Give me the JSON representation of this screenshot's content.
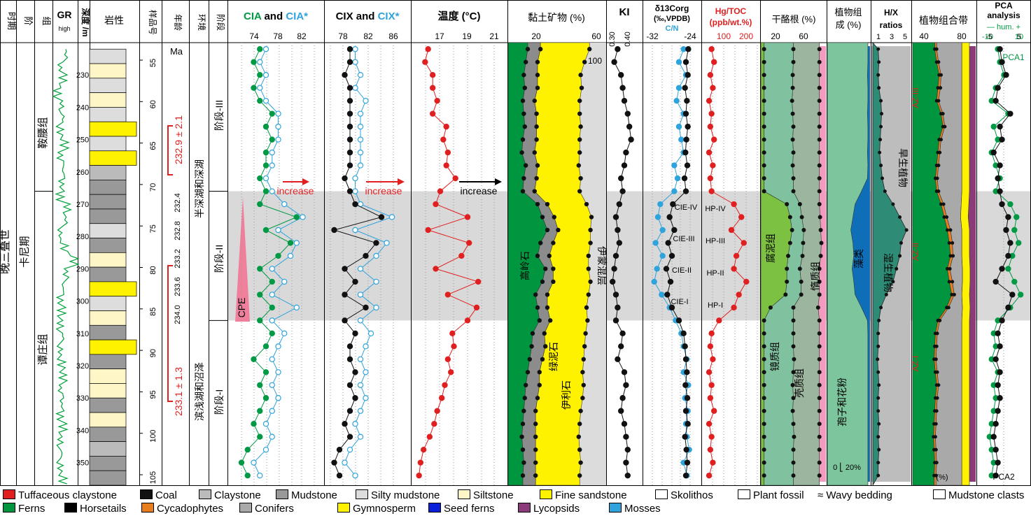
{
  "headers": {
    "period": "时期",
    "stage": "阶",
    "formation": "组",
    "gr": "GR",
    "gr_high": "high",
    "depth": "深度 /m",
    "lithology": "岩性",
    "sample": "样品号",
    "age": "年龄",
    "env": "环境",
    "phase": "阶段",
    "cia_a": "CIA",
    "cia_and": " and ",
    "cia_b": "CIA*",
    "cix_a": "CIX",
    "cix_and": " and ",
    "cix_b": "CIX*",
    "temp": "温度 (°C)",
    "clay": "黏土矿物 (%)",
    "ki": "KI",
    "carbon_1": "δ13Corg",
    "carbon_2": "(‰,VPDB)",
    "carbon_3": "C/N",
    "hg_1": "Hg/TOC",
    "hg_2": "(ppb/wt.%)",
    "maceral": "干酪根 (%)",
    "plant": "植物组",
    "plant2": "成 (%)",
    "hx1": "H/X",
    "hx2": "ratios",
    "assemb": "植物组合带",
    "pca1": "PCA",
    "pca2": "analysis",
    "pca3": "— hum. +"
  },
  "labels": {
    "period": "晚三叠世",
    "stage": "卡尼期",
    "formation_upper": "鞍腰组",
    "formation_lower": "谭庄组",
    "ma": "Ma",
    "age_upper": "232.9 ± 2.1",
    "age_lower": "233.1 ± 1.3",
    "ages_mid": [
      "232.4",
      "232.8",
      "233.2",
      "233.6",
      "234.0"
    ],
    "env_upper": "半深湖和深湖",
    "env_lower": "滨浅湖和沼泽",
    "phase_iii": "阶段-III",
    "phase_ii": "阶段-II",
    "phase_i": "阶段-I",
    "cpe": "CPE",
    "increase": "increase",
    "clay_kaol": "高岭石",
    "clay_chlor": "绿泥石",
    "clay_illite": "伊利石",
    "clay_is": "伊蒙混层",
    "clay_100": "100",
    "cie": [
      "CIE-IV",
      "CIE-III",
      "CIE-II",
      "CIE-I"
    ],
    "hp": [
      "HP-IV",
      "HP-III",
      "HP-II",
      "HP-I"
    ],
    "mac_sap": "腐泥组",
    "mac_vit": "镜质组",
    "mac_lip": "壳质组",
    "mac_iner": "惰质组",
    "pl_spore": "孢子和花粉",
    "pl_algae": "藻类",
    "pl_scale": "0 ⎣ 20%",
    "hx_xero": "旱生植物",
    "hx_hygro": "湿生植物",
    "az3": "AZ-III",
    "az2": "AZ-II",
    "az1": "AZ-I",
    "pca1_label": "PCA1",
    "pca2_label": "PCA2",
    "assemb_unit": "(%)"
  },
  "axes": {
    "depth_ticks": [
      230,
      240,
      250,
      260,
      270,
      280,
      290,
      300,
      310,
      320,
      330,
      340,
      350
    ],
    "sample_ticks": [
      55,
      60,
      65,
      70,
      75,
      80,
      85,
      90,
      95,
      100,
      105
    ],
    "cia_ticks": [
      "74",
      "78",
      "82"
    ],
    "cix_ticks": [
      "78",
      "82",
      "86"
    ],
    "temp_ticks": [
      "17",
      "19",
      "21"
    ],
    "clay_ticks": [
      "20",
      "60"
    ],
    "ki_ticks": [
      "0.30",
      "0.40"
    ],
    "carbon_ticks": [
      "-32",
      "-24"
    ],
    "hg_ticks": [
      "100",
      "200"
    ],
    "mac_ticks": [
      "20",
      "60"
    ],
    "hx_ticks": [
      "1",
      "3",
      "5"
    ],
    "assemb_ticks": [
      "40",
      "80"
    ],
    "pca_top_ticks": [
      "-10",
      "10"
    ],
    "pca_bot_ticks": [
      "-5",
      "5"
    ]
  },
  "colors": {
    "green": "#009944",
    "blue": "#2fa3dc",
    "red": "#e02020",
    "black": "#000",
    "cpe": "#f07f9c",
    "shade": "#d9d9d9",
    "kaol": "#00963f",
    "chlor": "#8c8c8c",
    "illite": "#fff200",
    "is": "#dcdcdc",
    "sap": "#7dc142",
    "vit": "#80c2a0",
    "lip": "#9cb59e",
    "iner": "#f39bbe",
    "spore": "#7dc59d",
    "algae": "#0e6fb8",
    "hx_dry": "#bdbdbd",
    "hx_wet": "#2e8b75",
    "ferns": "#00963f",
    "cycad": "#e87e1e",
    "conifer": "#a9a9a9",
    "gymno": "#fff200",
    "lyco": "#8b3a7a",
    "gr": "#00a03a"
  },
  "chart_data": {
    "type": "line",
    "depth_m": [
      222,
      226,
      230,
      234,
      238,
      242,
      246,
      250,
      254,
      258,
      262,
      266,
      270,
      274,
      278,
      282,
      286,
      290,
      294,
      298,
      302,
      306,
      310,
      314,
      318,
      322,
      326,
      330,
      334,
      338,
      342,
      346,
      350,
      354
    ],
    "cia": [
      75,
      74,
      75,
      74,
      75,
      77,
      76,
      77,
      76,
      76,
      75,
      76,
      75,
      81,
      76,
      80,
      78,
      75,
      77,
      75,
      77,
      75,
      77,
      76,
      74,
      76,
      75,
      76,
      75,
      74,
      75,
      73,
      72,
      73
    ],
    "cia_star": [
      76,
      75,
      76,
      75,
      76,
      78,
      78,
      78,
      77,
      77,
      76,
      77,
      79,
      82,
      78,
      81,
      80,
      77,
      79,
      77,
      81,
      77,
      79,
      78,
      77,
      78,
      77,
      78,
      77,
      76,
      77,
      76,
      74,
      75
    ],
    "cix": [
      78,
      78,
      77,
      78,
      78,
      78,
      78,
      78,
      78,
      78,
      77,
      78,
      79,
      84,
      75,
      83,
      81,
      77,
      79,
      77,
      81,
      77,
      79,
      78,
      78,
      79,
      78,
      79,
      78,
      77,
      78,
      76,
      75,
      76
    ],
    "cix_star": [
      79,
      79,
      80,
      79,
      81,
      80,
      80,
      80,
      80,
      80,
      79,
      79,
      80,
      86,
      79,
      85,
      83,
      80,
      83,
      80,
      83,
      80,
      82,
      81,
      80,
      81,
      80,
      81,
      80,
      79,
      80,
      78,
      77,
      79
    ],
    "temp_c": [
      17.0,
      16.8,
      17.3,
      17.3,
      17.6,
      17.3,
      18.2,
      18.0,
      18.3,
      18.2,
      18.8,
      17.8,
      17.5,
      19.6,
      17.0,
      19.7,
      19.2,
      17.5,
      20.3,
      18.3,
      20.2,
      19.6,
      18.6,
      18.7,
      18.3,
      18.5,
      18.1,
      17.9,
      17.6,
      17.4,
      17.1,
      16.7,
      16.5,
      16.4
    ],
    "ki": [
      0.31,
      0.29,
      0.33,
      0.34,
      0.35,
      0.37,
      0.38,
      0.39,
      0.36,
      0.35,
      0.33,
      0.34,
      0.32,
      0.3,
      0.31,
      0.32,
      0.3,
      0.29,
      0.28,
      0.3,
      0.31,
      0.3,
      0.34,
      0.33,
      0.31,
      0.35,
      0.36,
      0.34,
      0.33,
      0.35,
      0.36,
      0.37,
      0.36,
      0.37
    ],
    "d13c": [
      -24.5,
      -25.0,
      -24.6,
      -25.2,
      -24.8,
      -25.0,
      -24.6,
      -24.9,
      -25.1,
      -24.7,
      -25.3,
      -25.0,
      -27.8,
      -28.5,
      -27.5,
      -28.8,
      -28.0,
      -29.2,
      -28.3,
      -29.0,
      -28.0,
      -26.5,
      -25.5,
      -25.2,
      -25.0,
      -24.8,
      -25.1,
      -24.7,
      -25.0,
      -24.6,
      -25.2,
      -24.9,
      -24.7,
      -25.0
    ],
    "c_n": [
      -25.5,
      -26.5,
      -25.0,
      -26.5,
      -27.0,
      -25.5,
      -26.5,
      -26.0,
      -25.5,
      -27.5,
      -26.8,
      -27.5,
      -30.5,
      -31.0,
      -30.0,
      -31.5,
      -30.0,
      -31.2,
      -31.8,
      -30.2,
      -28.5,
      -27.2,
      -26.0,
      -25.5,
      -24.8,
      -25.5,
      -24.5,
      -25.2,
      -24.6,
      -25.0,
      -24.8,
      -24.3,
      -25.5,
      -24.8
    ],
    "hg_toc": [
      30,
      40,
      25,
      35,
      20,
      30,
      25,
      40,
      20,
      35,
      25,
      30,
      120,
      150,
      110,
      160,
      130,
      120,
      170,
      140,
      120,
      60,
      30,
      25,
      35,
      20,
      30,
      25,
      40,
      20,
      30,
      25,
      35,
      20
    ],
    "clay_kaolinite": [
      20,
      18,
      16,
      17,
      15,
      16,
      17,
      15,
      14,
      18,
      16,
      15,
      30,
      35,
      40,
      33,
      30,
      38,
      35,
      28,
      30,
      32,
      25,
      24,
      22,
      20,
      18,
      17,
      16,
      15,
      14,
      15,
      16,
      15
    ],
    "clay_chlorite": [
      13,
      12,
      14,
      13,
      12,
      13,
      12,
      14,
      13,
      12,
      13,
      12,
      10,
      12,
      11,
      13,
      12,
      8,
      11,
      12,
      10,
      11,
      12,
      14,
      13,
      12,
      14,
      13,
      12,
      13,
      14,
      13,
      12,
      13
    ],
    "clay_illite": [
      50,
      48,
      44,
      45,
      46,
      44,
      45,
      44,
      46,
      42,
      45,
      46,
      40,
      38,
      33,
      38,
      40,
      36,
      38,
      42,
      40,
      38,
      42,
      40,
      42,
      44,
      45,
      46,
      46,
      45,
      44,
      45,
      46,
      45
    ],
    "maceral_sapropelinite": [
      5,
      5,
      5,
      5,
      5,
      5,
      5,
      5,
      5,
      5,
      5,
      5,
      40,
      45,
      48,
      45,
      42,
      40,
      40,
      38,
      15,
      5,
      5,
      5,
      5,
      5,
      5,
      5,
      5,
      5,
      5,
      5,
      5,
      5
    ],
    "maceral_vitrinite": [
      45,
      45,
      44,
      44,
      43,
      44,
      45,
      44,
      45,
      44,
      45,
      45,
      20,
      18,
      18,
      20,
      22,
      20,
      22,
      24,
      35,
      45,
      45,
      45,
      46,
      45,
      44,
      45,
      44,
      45,
      46,
      45,
      45,
      45
    ],
    "maceral_liptinite": [
      40,
      40,
      41,
      41,
      42,
      41,
      40,
      41,
      40,
      41,
      40,
      40,
      30,
      28,
      26,
      28,
      28,
      30,
      28,
      28,
      38,
      40,
      40,
      40,
      39,
      40,
      41,
      40,
      41,
      40,
      39,
      40,
      40,
      40
    ],
    "plant_spore": [
      95,
      95,
      94,
      95,
      95,
      94,
      95,
      95,
      94,
      95,
      94,
      80,
      65,
      60,
      55,
      60,
      62,
      58,
      62,
      65,
      80,
      94,
      95,
      95,
      95,
      95,
      95,
      95,
      95,
      95,
      95,
      95,
      95,
      95
    ],
    "plant_algae": [
      5,
      5,
      6,
      5,
      5,
      6,
      5,
      5,
      6,
      5,
      6,
      20,
      35,
      40,
      45,
      40,
      38,
      42,
      38,
      35,
      20,
      6,
      5,
      5,
      5,
      5,
      5,
      5,
      5,
      5,
      5,
      5,
      5,
      5
    ],
    "hx_ratio": [
      0.8,
      0.9,
      0.8,
      0.9,
      1.2,
      1.3,
      1.2,
      1.1,
      1.0,
      1.2,
      1.4,
      1.8,
      3.0,
      4.0,
      5.0,
      4.2,
      4.0,
      3.5,
      3.0,
      2.0,
      1.2,
      0.9,
      0.8,
      0.8,
      0.7,
      0.8,
      0.9,
      0.8,
      0.8,
      0.9,
      0.8,
      0.9,
      0.8,
      0.8
    ],
    "assemb_ferns": [
      35,
      38,
      42,
      40,
      38,
      45,
      48,
      42,
      40,
      38,
      36,
      38,
      45,
      50,
      55,
      58,
      60,
      55,
      58,
      62,
      54,
      40,
      36,
      35,
      34,
      36,
      38,
      36,
      35,
      34,
      33,
      34,
      35,
      34
    ],
    "assemb_cycad": [
      3,
      3,
      3,
      4,
      3,
      3,
      3,
      3,
      3,
      3,
      3,
      3,
      4,
      4,
      5,
      5,
      4,
      4,
      5,
      4,
      3,
      3,
      3,
      3,
      3,
      3,
      3,
      3,
      3,
      3,
      3,
      3,
      3,
      3
    ],
    "assemb_conifer": [
      40,
      37,
      33,
      34,
      37,
      30,
      27,
      33,
      35,
      37,
      39,
      37,
      28,
      22,
      18,
      15,
      14,
      20,
      16,
      12,
      22,
      35,
      39,
      40,
      41,
      39,
      37,
      39,
      40,
      41,
      42,
      41,
      40,
      41
    ],
    "assemb_gymno": [
      12,
      12,
      12,
      12,
      12,
      12,
      12,
      12,
      12,
      12,
      12,
      12,
      12,
      12,
      12,
      12,
      12,
      12,
      12,
      12,
      12,
      12,
      12,
      12,
      12,
      12,
      12,
      12,
      12,
      12,
      12,
      12,
      12,
      12
    ],
    "pca1": [
      -3,
      -2,
      0,
      -4,
      -6,
      2,
      -5,
      -3,
      -6,
      -4,
      -2,
      -4,
      3,
      6,
      5,
      7,
      4,
      2,
      5,
      8,
      3,
      -3,
      -5,
      -4,
      -6,
      -3,
      -5,
      -4,
      -5,
      -6,
      -7,
      -6,
      -5,
      -6
    ],
    "pca2": [
      -2,
      -1,
      1,
      -3,
      -4,
      3,
      -2,
      -1,
      -5,
      -2,
      -3,
      -2,
      -1,
      2,
      1,
      3,
      2,
      -1,
      -4,
      4,
      2,
      -1,
      -3,
      -2,
      -4,
      -2,
      -3,
      -2,
      -3,
      -4,
      -5,
      -4,
      -3,
      -4
    ],
    "gr_offset": [
      0.3,
      0.1,
      0.2,
      0.0,
      0.15,
      0.2,
      0.1,
      0.25,
      0.1,
      0.2,
      0.15,
      0.1,
      0.35,
      0.3,
      0.1,
      0.25,
      0.6,
      0.3,
      0.2,
      0.1,
      0.15,
      0.1,
      0.2,
      0.1,
      0.15,
      0.2,
      0.1,
      0.15,
      0.1,
      0.2,
      0.1,
      0.15,
      0.1,
      0.2
    ]
  },
  "legend": {
    "row1": [
      {
        "label": "Tuffaceous claystone",
        "color": "#e02020"
      },
      {
        "label": "Coal",
        "color": "#111"
      },
      {
        "label": "Claystone",
        "color": "#bbb"
      },
      {
        "label": "Mudstone",
        "color": "#999"
      },
      {
        "label": "Silty mudstone",
        "color": "#ddd"
      },
      {
        "label": "Siltstone",
        "color": "#fff6c8"
      },
      {
        "label": "Fine sandstone",
        "color": "#fff200"
      },
      {
        "label": "Skolithos",
        "color": "#fff"
      },
      {
        "label": "Plant fossil",
        "color": "#fff"
      },
      {
        "label": "≈ Wavy bedding",
        "color": ""
      },
      {
        "label": "Mudstone clasts",
        "color": "#fff"
      }
    ],
    "row2": [
      {
        "label": "Ferns",
        "color": "#00963f"
      },
      {
        "label": "Horsetails",
        "color": "#000"
      },
      {
        "label": "Cycadophytes",
        "color": "#e87e1e"
      },
      {
        "label": "Conifers",
        "color": "#a9a9a9"
      },
      {
        "label": "Gymnosperm",
        "color": "#fff200"
      },
      {
        "label": "Seed ferns",
        "color": "#0a1fd8"
      },
      {
        "label": "Lycopsids",
        "color": "#8b3a7a"
      },
      {
        "label": "Mosses",
        "color": "#2fa3dc"
      }
    ]
  }
}
